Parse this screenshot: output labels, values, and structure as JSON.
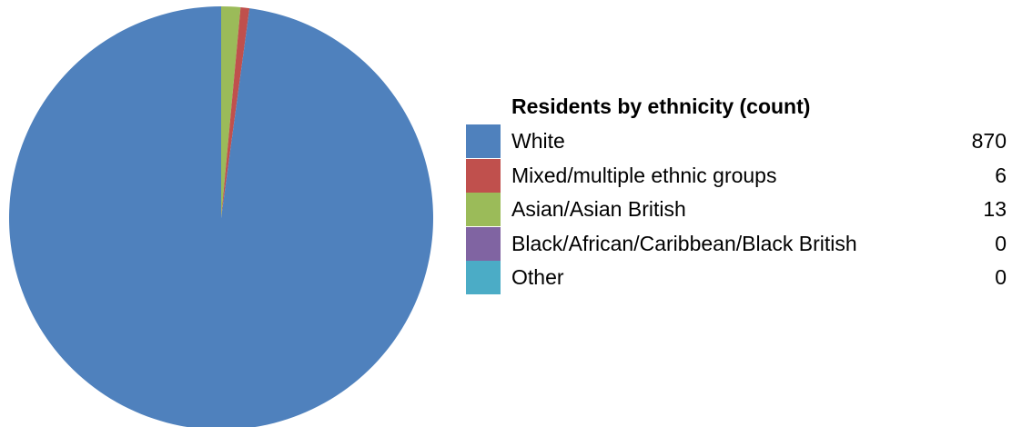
{
  "chart_data": {
    "type": "pie",
    "legend_title": "Residents by ethnicity (count)",
    "legend_position": "right",
    "slices": [
      {
        "label": "White",
        "value": 870,
        "value_label": "870",
        "color": "#4f81bd"
      },
      {
        "label": "Mixed/multiple ethnic groups",
        "value": 6,
        "value_label": "6",
        "color": "#c0504d"
      },
      {
        "label": "Asian/Asian British",
        "value": 13,
        "value_label": "13",
        "color": "#9bbb59"
      },
      {
        "label": "Black/African/Caribbean/Black British",
        "value": 0,
        "value_label": "0",
        "color": "#8064a2"
      },
      {
        "label": "Other",
        "value": 0,
        "value_label": "0",
        "color": "#4bacc6"
      }
    ]
  }
}
